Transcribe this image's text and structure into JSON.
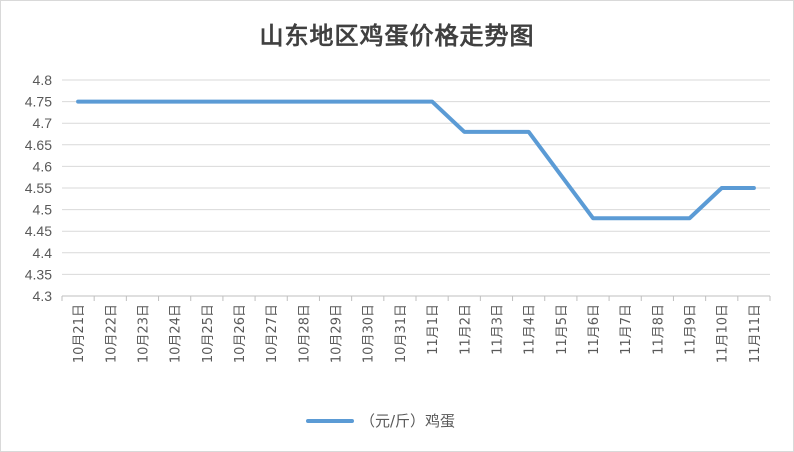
{
  "chart_data": {
    "type": "line",
    "title": "山东地区鸡蛋价格走势图",
    "categories": [
      "10月21日",
      "10月22日",
      "10月23日",
      "10月24日",
      "10月25日",
      "10月26日",
      "10月27日",
      "10月28日",
      "10月29日",
      "10月30日",
      "10月31日",
      "11月1日",
      "11月2日",
      "11月3日",
      "11月4日",
      "11月5日",
      "11月6日",
      "11月7日",
      "11月8日",
      "11月9日",
      "11月10日",
      "11月11日"
    ],
    "series": [
      {
        "name": "（元/斤）鸡蛋",
        "color": "#5b9bd5",
        "values": [
          4.75,
          4.75,
          4.75,
          4.75,
          4.75,
          4.75,
          4.75,
          4.75,
          4.75,
          4.75,
          4.75,
          4.75,
          4.68,
          4.68,
          4.68,
          4.58,
          4.48,
          4.48,
          4.48,
          4.48,
          4.55,
          4.55
        ]
      }
    ],
    "yticks": [
      "4.3",
      "4.35",
      "4.4",
      "4.45",
      "4.5",
      "4.55",
      "4.6",
      "4.65",
      "4.7",
      "4.75",
      "4.8"
    ],
    "ylim": [
      4.3,
      4.8
    ],
    "xlabel": "",
    "ylabel": "",
    "grid": true,
    "legend_position": "bottom"
  }
}
